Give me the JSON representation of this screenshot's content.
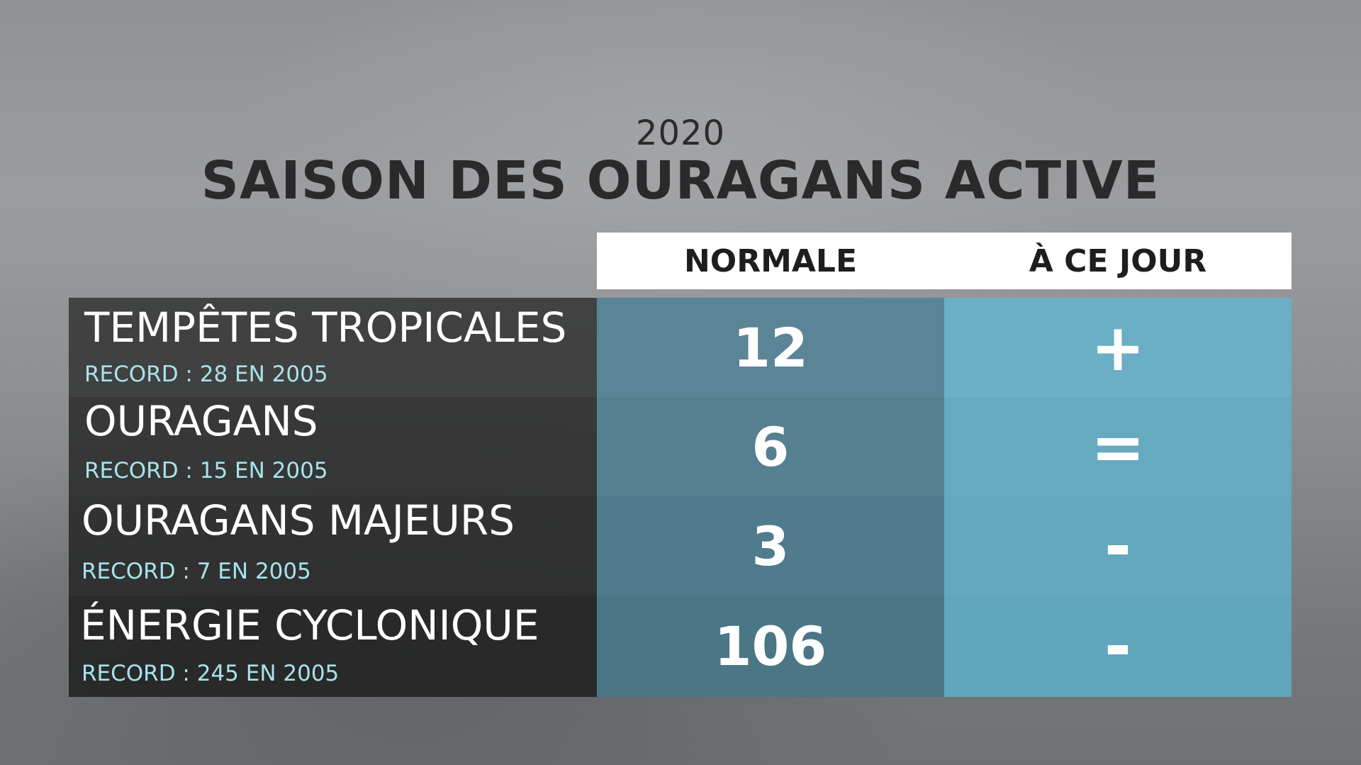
{
  "header": {
    "year": "2020",
    "title": "SAISON DES OURAGANS ACTIVE"
  },
  "columns": {
    "normal": "NORMALE",
    "today": "À CE JOUR"
  },
  "rows": [
    {
      "label": "TEMPÊTES TROPICALES",
      "record": "RECORD : 28 EN 2005",
      "normal": "12",
      "today": "+"
    },
    {
      "label": "OURAGANS",
      "record": "RECORD : 15 EN 2005",
      "normal": "6",
      "today": "="
    },
    {
      "label": "OURAGANS MAJEURS",
      "record": "RECORD : 7 EN 2005",
      "normal": "3",
      "today": "-"
    },
    {
      "label": "ÉNERGIE CYCLONIQUE",
      "record": "RECORD : 245 EN 2005",
      "normal": "106",
      "today": "-"
    }
  ],
  "colors": {
    "label_background": "#2b2b2b",
    "normal_column": "#537e91",
    "today_column": "#67a9c0",
    "record_text": "#a7e3ec"
  }
}
